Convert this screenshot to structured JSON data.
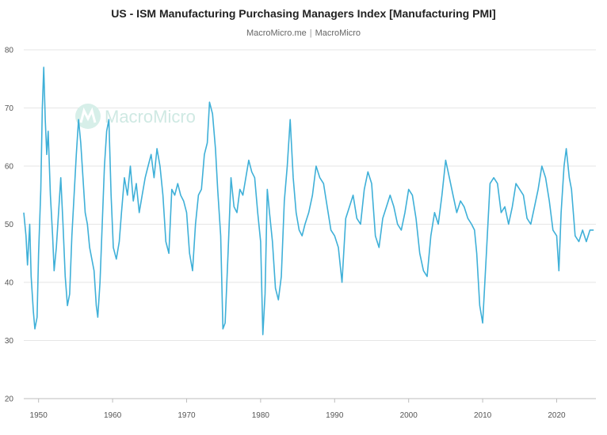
{
  "title": "US - ISM Manufacturing Purchasing Managers Index [Manufacturing PMI]",
  "subtitle": {
    "source": "MacroMicro.me",
    "separator": "|",
    "brand": "MacroMicro"
  },
  "watermark": "MacroMicro",
  "colors": {
    "line": "#3fb0d8",
    "grid": "#e6e6e6",
    "watermark": "#cfe9e3"
  },
  "chart_data": {
    "type": "line",
    "title": "US - ISM Manufacturing Purchasing Managers Index [Manufacturing PMI]",
    "xlabel": "",
    "ylabel": "",
    "xlim": [
      1948,
      2025.3
    ],
    "ylim": [
      20,
      80
    ],
    "y_ticks": [
      20,
      30,
      40,
      50,
      60,
      70,
      80
    ],
    "x_ticks": [
      1950,
      1960,
      1970,
      1980,
      1990,
      2000,
      2010,
      2020
    ],
    "grid": "horizontal",
    "legend": "none",
    "series": [
      {
        "x": [
          1948.0,
          1948.3,
          1948.5,
          1948.8,
          1949.0,
          1949.3,
          1949.5,
          1949.8,
          1950.0,
          1950.3,
          1950.5,
          1950.7,
          1950.9,
          1951.1,
          1951.3,
          1951.6,
          1951.9,
          1952.1,
          1952.4,
          1952.7,
          1953.0,
          1953.3,
          1953.6,
          1953.9,
          1954.2,
          1954.5,
          1954.8,
          1955.1,
          1955.4,
          1955.7,
          1956.0,
          1956.3,
          1956.6,
          1956.9,
          1957.2,
          1957.5,
          1957.8,
          1958.0,
          1958.3,
          1958.6,
          1958.9,
          1959.2,
          1959.5,
          1959.8,
          1960.1,
          1960.5,
          1960.9,
          1961.2,
          1961.6,
          1962.0,
          1962.4,
          1962.8,
          1963.2,
          1963.6,
          1964.0,
          1964.4,
          1964.8,
          1965.2,
          1965.6,
          1966.0,
          1966.4,
          1966.8,
          1967.2,
          1967.6,
          1968.0,
          1968.4,
          1968.8,
          1969.2,
          1969.6,
          1970.0,
          1970.4,
          1970.8,
          1971.2,
          1971.6,
          1972.0,
          1972.4,
          1972.8,
          1973.1,
          1973.5,
          1973.9,
          1974.2,
          1974.6,
          1974.9,
          1975.2,
          1975.6,
          1976.0,
          1976.4,
          1976.8,
          1977.2,
          1977.6,
          1978.0,
          1978.4,
          1978.8,
          1979.2,
          1979.6,
          1980.0,
          1980.3,
          1980.6,
          1980.9,
          1981.2,
          1981.6,
          1982.0,
          1982.4,
          1982.8,
          1983.2,
          1983.6,
          1984.0,
          1984.4,
          1984.8,
          1985.2,
          1985.6,
          1986.0,
          1986.5,
          1987.0,
          1987.5,
          1988.0,
          1988.5,
          1989.0,
          1989.5,
          1990.0,
          1990.5,
          1991.0,
          1991.5,
          1992.0,
          1992.5,
          1993.0,
          1993.5,
          1994.0,
          1994.5,
          1995.0,
          1995.5,
          1996.0,
          1996.5,
          1997.0,
          1997.5,
          1998.0,
          1998.5,
          1999.0,
          1999.5,
          2000.0,
          2000.5,
          2001.0,
          2001.5,
          2002.0,
          2002.5,
          2003.0,
          2003.5,
          2004.0,
          2004.5,
          2005.0,
          2005.5,
          2006.0,
          2006.5,
          2007.0,
          2007.5,
          2008.0,
          2008.5,
          2008.9,
          2009.2,
          2009.6,
          2010.0,
          2010.5,
          2011.0,
          2011.5,
          2012.0,
          2012.5,
          2013.0,
          2013.5,
          2014.0,
          2014.5,
          2015.0,
          2015.5,
          2016.0,
          2016.5,
          2017.0,
          2017.5,
          2018.0,
          2018.5,
          2019.0,
          2019.5,
          2020.0,
          2020.3,
          2020.6,
          2021.0,
          2021.3,
          2021.7,
          2022.0,
          2022.5,
          2023.0,
          2023.5,
          2024.0,
          2024.5,
          2025.0
        ],
        "y": [
          52,
          48,
          43,
          50,
          41,
          35,
          32,
          34,
          45,
          56,
          70,
          77,
          68,
          62,
          66,
          55,
          48,
          42,
          46,
          52,
          58,
          50,
          41,
          36,
          38,
          48,
          55,
          62,
          68,
          64,
          58,
          52,
          50,
          46,
          44,
          42,
          36,
          34,
          40,
          50,
          60,
          66,
          68,
          55,
          46,
          44,
          47,
          52,
          58,
          55,
          60,
          54,
          57,
          52,
          55,
          58,
          60,
          62,
          58,
          63,
          60,
          55,
          47,
          45,
          56,
          55,
          57,
          55,
          54,
          52,
          45,
          42,
          50,
          55,
          56,
          62,
          64,
          71,
          69,
          63,
          56,
          48,
          32,
          33,
          45,
          58,
          53,
          52,
          56,
          55,
          58,
          61,
          59,
          58,
          52,
          47,
          31,
          38,
          56,
          52,
          47,
          39,
          37,
          41,
          54,
          60,
          68,
          58,
          52,
          49,
          48,
          50,
          52,
          55,
          60,
          58,
          57,
          53,
          49,
          48,
          46,
          40,
          51,
          53,
          55,
          51,
          50,
          56,
          59,
          57,
          48,
          46,
          51,
          53,
          55,
          53,
          50,
          49,
          52,
          56,
          55,
          51,
          45,
          42,
          41,
          48,
          52,
          50,
          55,
          61,
          58,
          55,
          52,
          54,
          53,
          51,
          50,
          49,
          45,
          36,
          33,
          45,
          57,
          58,
          57,
          52,
          53,
          50,
          53,
          57,
          56,
          55,
          51,
          50,
          53,
          56,
          60,
          58,
          54,
          49,
          48,
          42,
          52,
          60,
          63,
          58,
          56,
          48,
          47,
          49,
          47,
          49,
          49
        ]
      }
    ]
  }
}
